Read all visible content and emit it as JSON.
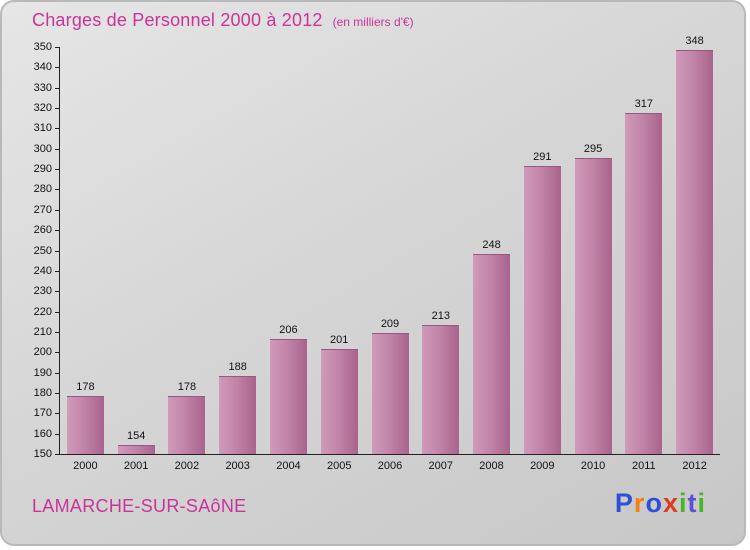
{
  "title": {
    "text": "Charges de Personnel 2000 à 2012",
    "subtitle": "(en milliers d'€)",
    "color": "#cc3399"
  },
  "chart_data": {
    "type": "bar",
    "title": "Charges de Personnel 2000 à 2012",
    "subtitle": "(en milliers d'€)",
    "categories": [
      "2000",
      "2001",
      "2002",
      "2003",
      "2004",
      "2005",
      "2006",
      "2007",
      "2008",
      "2009",
      "2010",
      "2011",
      "2012"
    ],
    "values": [
      178,
      154,
      178,
      188,
      206,
      201,
      209,
      213,
      248,
      291,
      295,
      317,
      348
    ],
    "xlabel": "",
    "ylabel": "",
    "ylim": [
      150,
      350
    ],
    "ytick_step": 10,
    "grid": false,
    "legend": "none",
    "bar_color": "#bb6f9b",
    "value_labels_shown": true
  },
  "footer": {
    "place": "LAMARCHE-SUR-SAôNE",
    "logo_text": "Proxiti",
    "logo_letters": [
      {
        "ch": "P",
        "color": "#2f4fd8"
      },
      {
        "ch": "r",
        "color": "#f5820b"
      },
      {
        "ch": "o",
        "color": "#2f4fd8"
      },
      {
        "ch": "x",
        "color": "#e03a1e"
      },
      {
        "ch": "i",
        "color": "#45b52a"
      },
      {
        "ch": "t",
        "color": "#5a52d5"
      },
      {
        "ch": "i",
        "color": "#45b52a"
      }
    ]
  }
}
